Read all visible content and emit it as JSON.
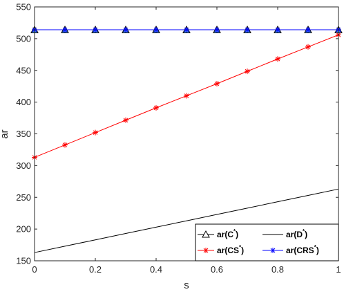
{
  "chart_data": {
    "type": "line",
    "xlabel": "s",
    "ylabel": "ar",
    "xlim": [
      0,
      1
    ],
    "ylim": [
      150,
      550
    ],
    "xticks": [
      0,
      0.2,
      0.4,
      0.6,
      0.8,
      1
    ],
    "xtick_labels": [
      "0",
      "0.2",
      "0.4",
      "0.6",
      "0.8",
      "1"
    ],
    "yticks": [
      150,
      200,
      250,
      300,
      350,
      400,
      450,
      500,
      550
    ],
    "ytick_labels": [
      "150",
      "200",
      "250",
      "300",
      "350",
      "400",
      "450",
      "500",
      "550"
    ],
    "grid": false,
    "legend_position": "bottom-right",
    "x": [
      0,
      0.1,
      0.2,
      0.3,
      0.4,
      0.5,
      0.6,
      0.7,
      0.8,
      0.9,
      1.0
    ],
    "series": [
      {
        "key": "c",
        "name": "ar(C*)",
        "legend_base": "ar(C",
        "legend_sup": "*",
        "legend_close": ")",
        "color": "#000000",
        "marker": "triangle",
        "marker_fill": "#4a90e2",
        "values": [
          514,
          514,
          514,
          514,
          514,
          514,
          514,
          514,
          514,
          514,
          514
        ]
      },
      {
        "key": "d",
        "name": "ar(D*)",
        "legend_base": "ar(D",
        "legend_sup": "*",
        "legend_close": ")",
        "color": "#000000",
        "marker": "none",
        "values": [
          163,
          173,
          183,
          193,
          203,
          213,
          223,
          233,
          243,
          253,
          263
        ]
      },
      {
        "key": "cs",
        "name": "ar(CS*)",
        "legend_base": "ar(CS",
        "legend_sup": "*",
        "legend_close": ")",
        "color": "#ff0000",
        "marker": "asterisk",
        "values": [
          313,
          332.5,
          352,
          371.5,
          391,
          410,
          429,
          448.5,
          468,
          487,
          506
        ]
      },
      {
        "key": "crs",
        "name": "ar(CRS*)",
        "legend_base": "ar(CRS",
        "legend_sup": "*",
        "legend_close": ")",
        "color": "#0000ff",
        "marker": "asterisk",
        "values": [
          514,
          514,
          514,
          514,
          514,
          514,
          514,
          514,
          514,
          514,
          514
        ]
      }
    ]
  }
}
